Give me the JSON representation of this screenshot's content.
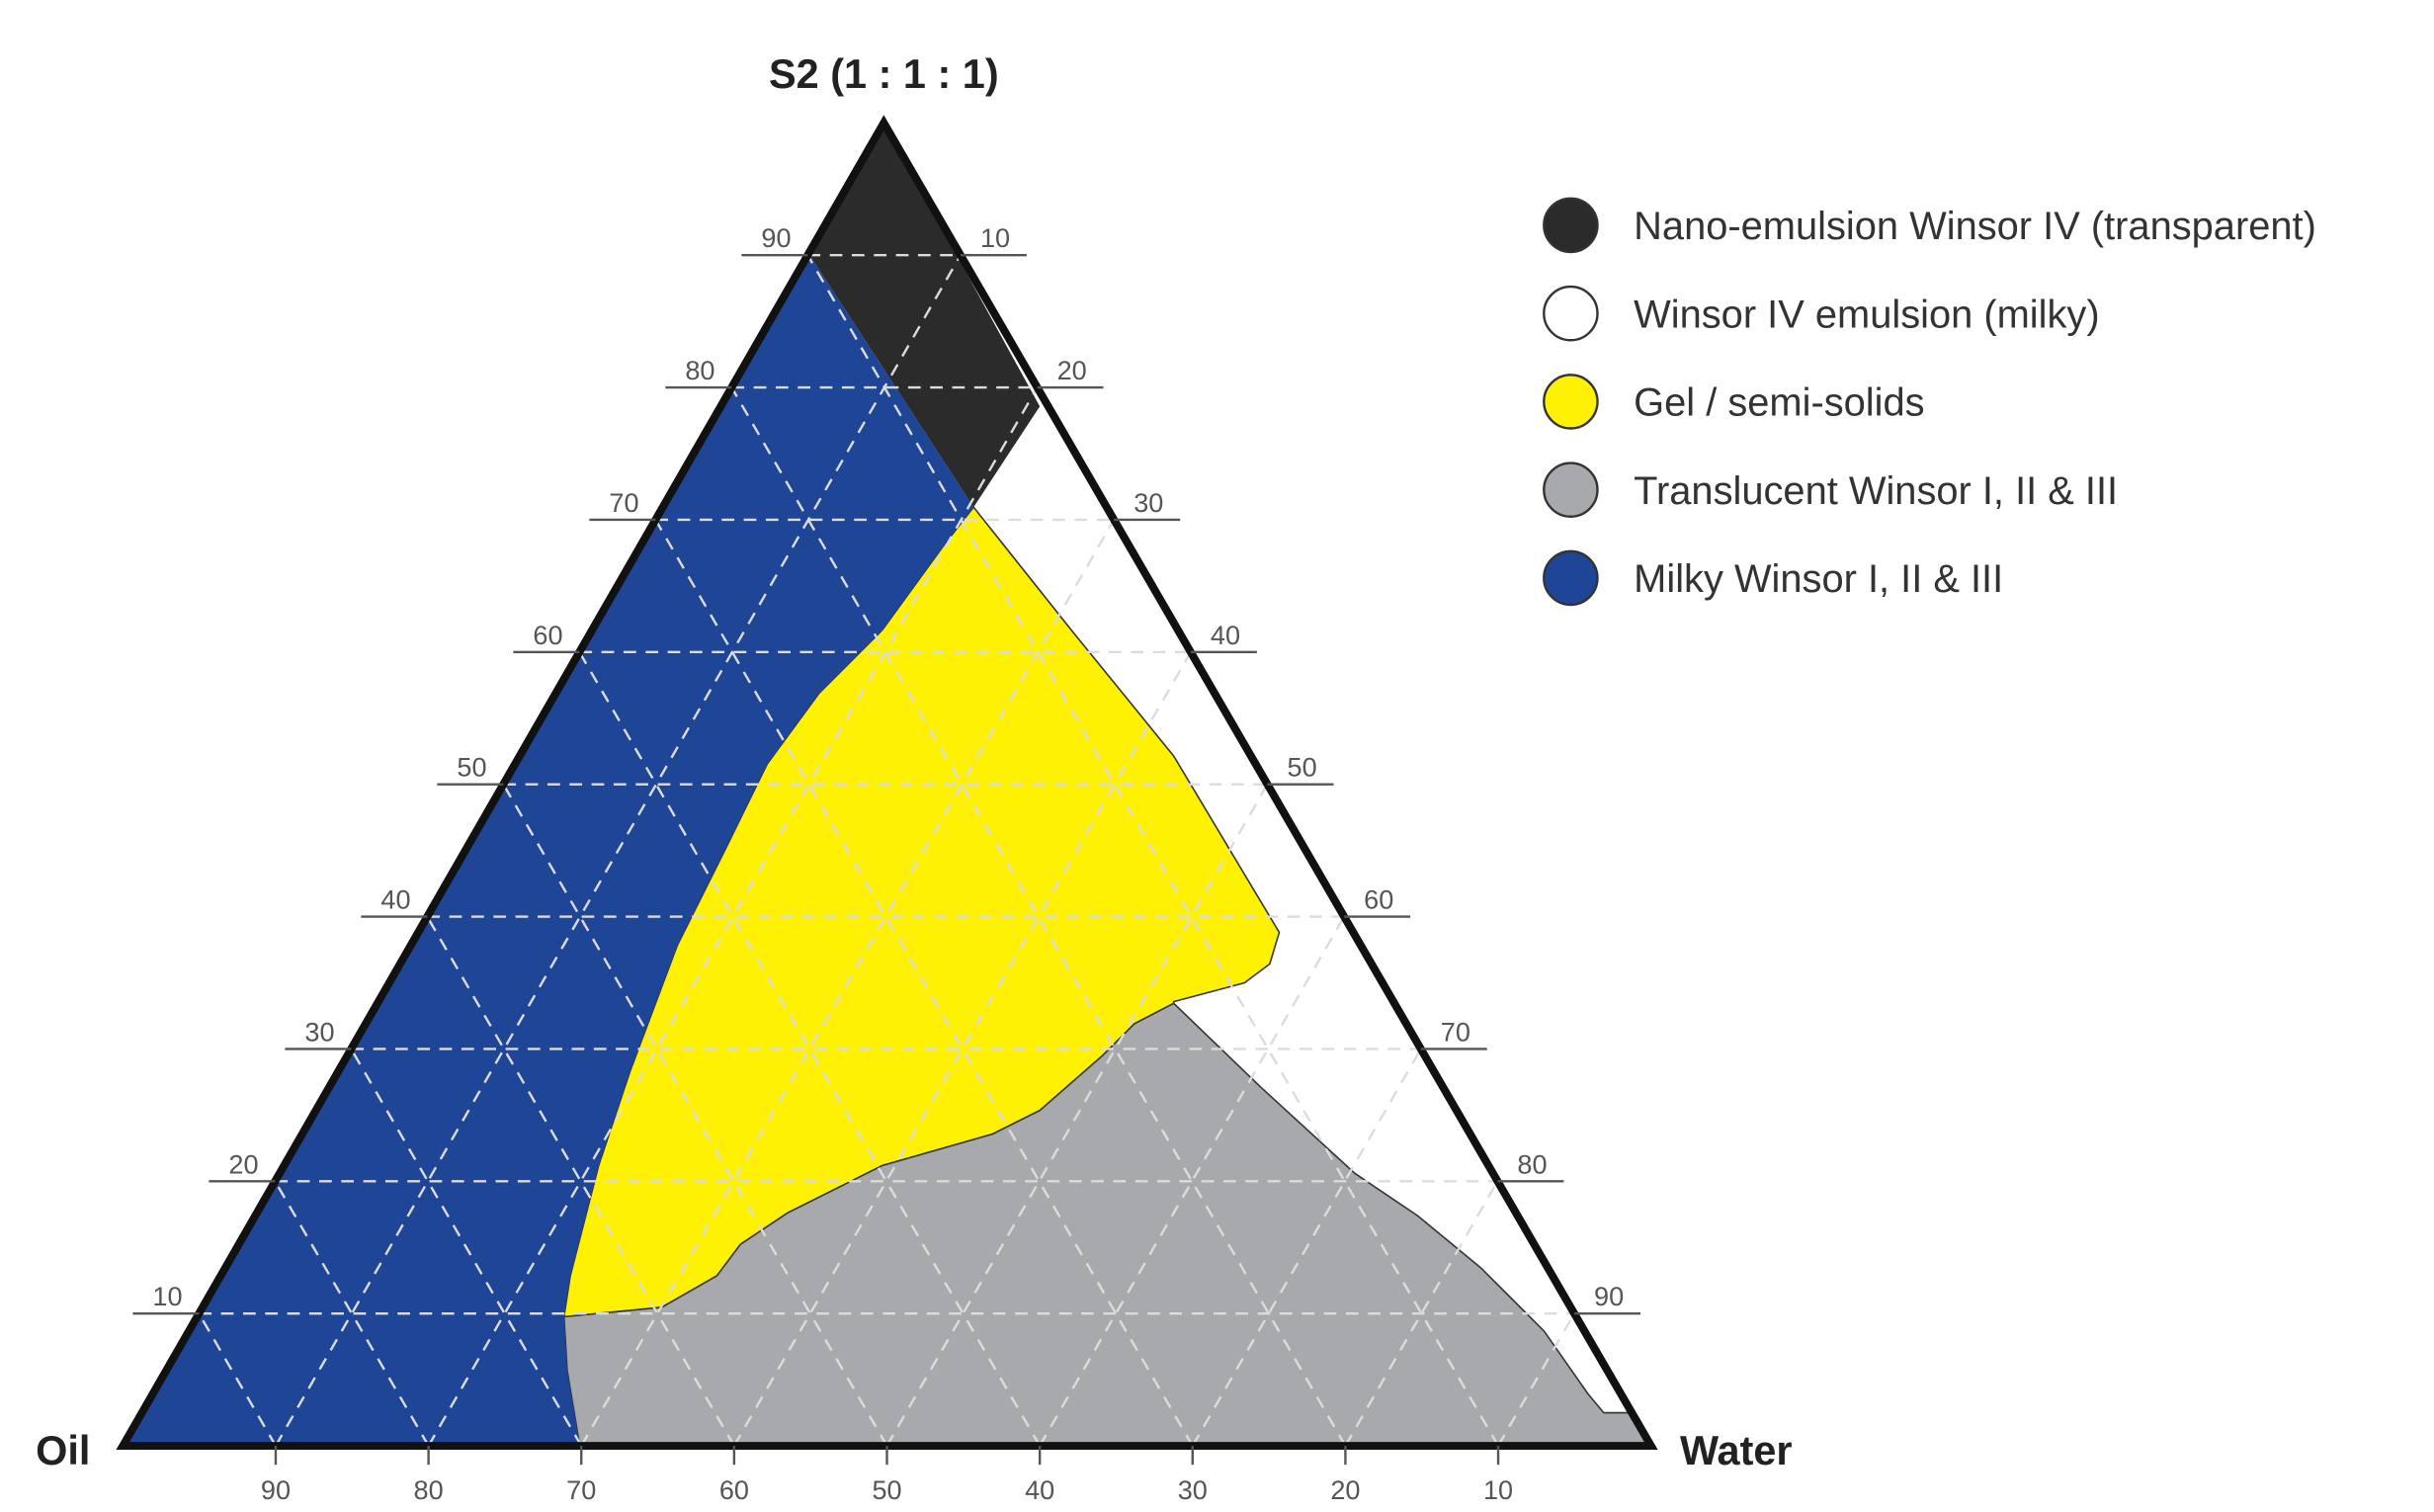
{
  "title": "S2 (1 : 1 : 1)",
  "vertices": {
    "left": "Oil",
    "right": "Water"
  },
  "left_ticks": [
    90,
    80,
    70,
    60,
    50,
    40,
    30,
    20,
    10
  ],
  "right_ticks": [
    10,
    20,
    30,
    40,
    50,
    60,
    70,
    80,
    90
  ],
  "bottom_ticks": [
    90,
    80,
    70,
    60,
    50,
    40,
    30,
    20,
    10
  ],
  "legend": [
    {
      "label": "Nano-emulsion Winsor IV (transparent)",
      "color": "#2b2b2b"
    },
    {
      "label": "Winsor IV emulsion (milky)",
      "color": "#ffffff"
    },
    {
      "label": "Gel / semi-solids",
      "color": "#fff200"
    },
    {
      "label": "Translucent Winsor I, II & III",
      "color": "#a7a9ac"
    },
    {
      "label": "Milky Winsor I, II & III",
      "color": "#1f4597"
    }
  ]
}
